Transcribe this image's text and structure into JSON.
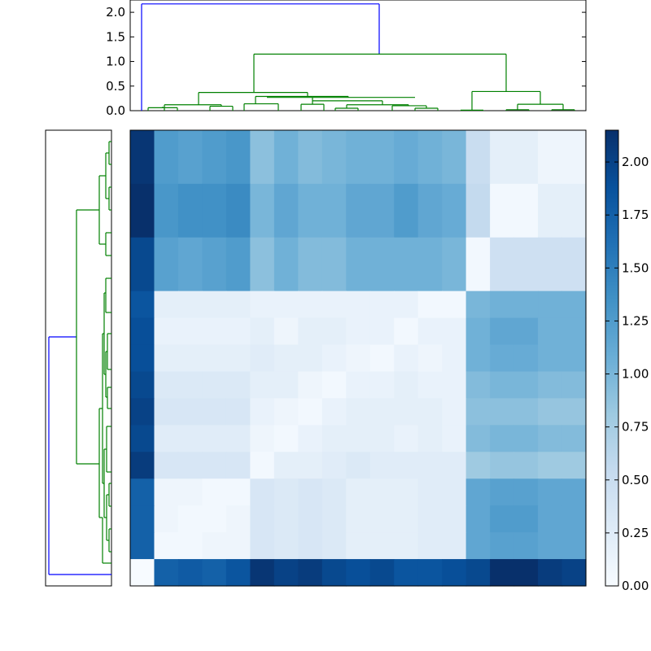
{
  "chart_data": {
    "type": "heatmap",
    "title": "",
    "xlabel": "",
    "ylabel": "",
    "colormap": "Blues",
    "colormap_stops": [
      "#f7fbff",
      "#deebf7",
      "#c6dbef",
      "#9ecae1",
      "#6baed6",
      "#4292c6",
      "#2171b5",
      "#08519c",
      "#08306b"
    ],
    "link_colors": {
      "above_threshold": "#0000ff",
      "cluster": "#008000"
    },
    "vmin": 0,
    "vmax": 2.15,
    "colorbar_ticks": [
      "0.00",
      "0.25",
      "0.50",
      "0.75",
      "1.00",
      "1.25",
      "1.50",
      "1.75",
      "2.00"
    ],
    "colorbar_tick_values": [
      0,
      0.25,
      0.5,
      0.75,
      1.0,
      1.25,
      1.5,
      1.75,
      2.0
    ],
    "top_dendrogram_ticks": [
      "0.0",
      "0.5",
      "1.0",
      "1.5",
      "2.0"
    ],
    "top_dendrogram_tick_values": [
      0,
      0.5,
      1.0,
      1.5,
      2.0
    ],
    "top_dendrogram_ylim": [
      0,
      2.25
    ],
    "matrix": [
      [
        2.1,
        1.25,
        1.2,
        1.25,
        1.3,
        0.9,
        1.05,
        0.95,
        1.0,
        1.05,
        1.05,
        1.1,
        1.05,
        1.0,
        0.5,
        0.2,
        0.2,
        0.1,
        0.1
      ],
      [
        2.15,
        1.3,
        1.35,
        1.35,
        1.4,
        1.0,
        1.15,
        1.05,
        1.05,
        1.15,
        1.15,
        1.25,
        1.15,
        1.1,
        0.55,
        0.05,
        0.05,
        0.2,
        0.2
      ],
      [
        1.95,
        1.2,
        1.15,
        1.2,
        1.25,
        0.9,
        1.05,
        0.95,
        0.95,
        1.05,
        1.05,
        1.05,
        1.05,
        1.0,
        0.05,
        0.45,
        0.45,
        0.45,
        0.45
      ],
      [
        1.85,
        0.2,
        0.2,
        0.2,
        0.2,
        0.15,
        0.15,
        0.15,
        0.15,
        0.15,
        0.15,
        0.15,
        0.05,
        0.05,
        1.0,
        1.05,
        1.05,
        1.05,
        1.05
      ],
      [
        1.9,
        0.15,
        0.15,
        0.15,
        0.15,
        0.2,
        0.1,
        0.2,
        0.2,
        0.15,
        0.15,
        0.05,
        0.15,
        0.15,
        1.05,
        1.15,
        1.15,
        1.05,
        1.05
      ],
      [
        1.9,
        0.2,
        0.2,
        0.2,
        0.2,
        0.25,
        0.2,
        0.2,
        0.15,
        0.1,
        0.05,
        0.15,
        0.1,
        0.15,
        1.05,
        1.1,
        1.1,
        1.05,
        1.05
      ],
      [
        1.95,
        0.3,
        0.3,
        0.3,
        0.3,
        0.2,
        0.2,
        0.1,
        0.05,
        0.15,
        0.15,
        0.2,
        0.15,
        0.15,
        0.95,
        1.0,
        1.0,
        0.95,
        0.95
      ],
      [
        2.0,
        0.35,
        0.35,
        0.35,
        0.35,
        0.15,
        0.1,
        0.05,
        0.15,
        0.2,
        0.2,
        0.2,
        0.2,
        0.15,
        0.9,
        0.9,
        0.9,
        0.85,
        0.85
      ],
      [
        1.95,
        0.25,
        0.25,
        0.25,
        0.25,
        0.1,
        0.05,
        0.15,
        0.2,
        0.2,
        0.2,
        0.15,
        0.2,
        0.15,
        0.95,
        1.0,
        1.0,
        0.95,
        0.95
      ],
      [
        2.05,
        0.35,
        0.35,
        0.35,
        0.35,
        0.05,
        0.2,
        0.2,
        0.25,
        0.3,
        0.25,
        0.25,
        0.25,
        0.25,
        0.8,
        0.85,
        0.85,
        0.8,
        0.8
      ],
      [
        1.75,
        0.1,
        0.1,
        0.05,
        0.05,
        0.35,
        0.3,
        0.35,
        0.3,
        0.2,
        0.2,
        0.2,
        0.25,
        0.25,
        1.15,
        1.2,
        1.2,
        1.15,
        1.15
      ],
      [
        1.75,
        0.1,
        0.05,
        0.05,
        0.1,
        0.35,
        0.3,
        0.35,
        0.3,
        0.2,
        0.2,
        0.2,
        0.25,
        0.25,
        1.15,
        1.25,
        1.25,
        1.15,
        1.15
      ],
      [
        1.75,
        0.05,
        0.05,
        0.1,
        0.1,
        0.35,
        0.3,
        0.35,
        0.3,
        0.2,
        0.2,
        0.2,
        0.25,
        0.25,
        1.15,
        1.2,
        1.2,
        1.15,
        1.15
      ],
      [
        0.0,
        1.75,
        1.8,
        1.75,
        1.85,
        2.1,
        2.0,
        2.05,
        1.95,
        1.9,
        1.95,
        1.85,
        1.85,
        1.9,
        1.95,
        2.15,
        2.15,
        2.05,
        2.0
      ]
    ],
    "row_heights": [
      2,
      2,
      2,
      1,
      1,
      1,
      1,
      1,
      1,
      1,
      1,
      1,
      1,
      1
    ],
    "col_widths": [
      1,
      1,
      1,
      1,
      1,
      1,
      1,
      1,
      1,
      1,
      1,
      1,
      1,
      1,
      1,
      1,
      1,
      1,
      1
    ],
    "dendrogram_top_segments": [
      [
        14,
        0,
        14,
        2.17
      ],
      [
        14,
        2.17,
        306,
        2.17
      ],
      [
        306,
        2.17,
        306,
        1.15
      ],
      [
        152,
        1.15,
        462,
        1.15
      ],
      [
        462,
        1.15,
        462,
        0.38
      ],
      [
        84,
        0.36,
        84,
        0.33
      ],
      [
        84,
        0.36,
        218,
        0.36
      ],
      [
        218,
        0.36,
        218,
        0.25
      ],
      [
        57,
        0.05,
        57,
        0.12
      ],
      [
        57,
        0.12,
        112,
        0.12
      ],
      [
        112,
        0.12,
        112,
        0.05
      ],
      [
        42,
        0.05,
        42,
        0.08
      ],
      [
        42,
        0.08,
        70,
        0.08
      ],
      [
        70,
        0.08,
        70,
        0.05
      ],
      [
        98,
        0.05,
        98,
        0.08
      ],
      [
        98,
        0.08,
        126,
        0.08
      ],
      [
        126,
        0.08,
        126,
        0.05
      ],
      [
        168,
        0.05,
        168,
        0.28
      ],
      [
        168,
        0.28,
        268,
        0.28
      ],
      [
        268,
        0.28,
        268,
        0.05
      ],
      [
        154,
        0.05,
        154,
        0.14
      ],
      [
        154,
        0.14,
        182,
        0.14
      ],
      [
        182,
        0.14,
        182,
        0.05
      ],
      [
        224,
        0.05,
        224,
        0.2
      ],
      [
        224,
        0.2,
        310,
        0.2
      ],
      [
        310,
        0.2,
        310,
        0.05
      ],
      [
        210,
        0.05,
        210,
        0.13
      ],
      [
        210,
        0.13,
        238,
        0.13
      ],
      [
        238,
        0.13,
        238,
        0.05
      ],
      [
        280,
        0.05,
        280,
        0.14
      ],
      [
        280,
        0.14,
        342,
        0.14
      ],
      [
        342,
        0.14,
        342,
        0.05
      ],
      [
        266,
        0.05,
        266,
        0.07
      ],
      [
        266,
        0.07,
        294,
        0.07
      ],
      [
        294,
        0.07,
        294,
        0.05
      ],
      [
        322,
        0.05,
        322,
        0.1
      ],
      [
        322,
        0.1,
        364,
        0.1
      ],
      [
        364,
        0.1,
        364,
        0.05
      ],
      [
        350,
        0.05,
        350,
        0.05
      ],
      [
        378,
        0.05,
        378,
        0.05
      ],
      [
        420,
        0.4,
        420,
        0.4
      ],
      [
        420,
        0.4,
        504,
        0.4
      ],
      [
        504,
        0.4,
        504,
        0.05
      ],
      [
        406,
        0.01,
        406,
        0.01
      ],
      [
        434,
        0.01,
        434,
        0.01
      ],
      [
        490,
        0.14,
        490,
        0.14
      ],
      [
        462,
        0.05,
        462,
        0.14
      ],
      [
        462,
        0.14,
        518,
        0.14
      ],
      [
        518,
        0.14,
        518,
        0.05
      ],
      [
        448,
        0.03,
        448,
        0.03
      ],
      [
        476,
        0.03,
        476,
        0.03
      ],
      [
        504,
        0.03,
        504,
        0.03
      ],
      [
        532,
        0.03,
        532,
        0.03
      ]
    ]
  }
}
